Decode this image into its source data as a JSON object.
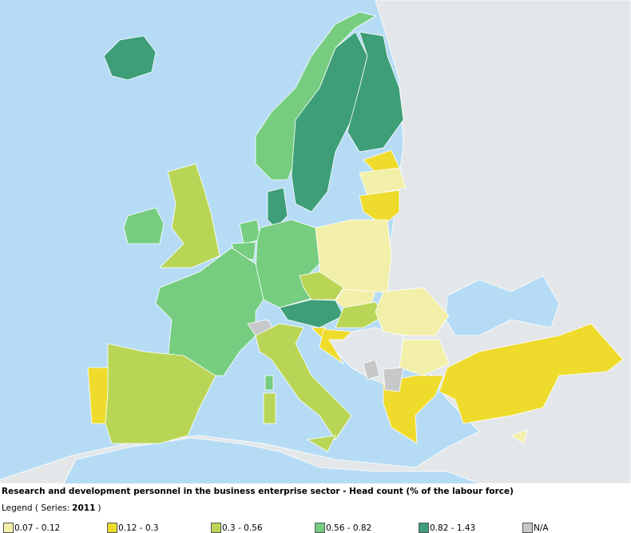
{
  "title": "Research and development personnel in the business enterprise sector - Head count (% of the labour force)",
  "legend": {
    "prefix": "Legend ( Series:",
    "series": "2011",
    "suffix": ")",
    "items": [
      {
        "label": "0.07 - 0.12",
        "color": "#f2efa8"
      },
      {
        "label": "0.12 - 0.3",
        "color": "#eedb2c"
      },
      {
        "label": "0.3 - 0.56",
        "color": "#b9d556"
      },
      {
        "label": "0.56 - 0.82",
        "color": "#76cd80"
      },
      {
        "label": "0.82 - 1.43",
        "color": "#3d9e78"
      },
      {
        "label": "N/A",
        "color": "#c6c8ca"
      }
    ]
  }
}
